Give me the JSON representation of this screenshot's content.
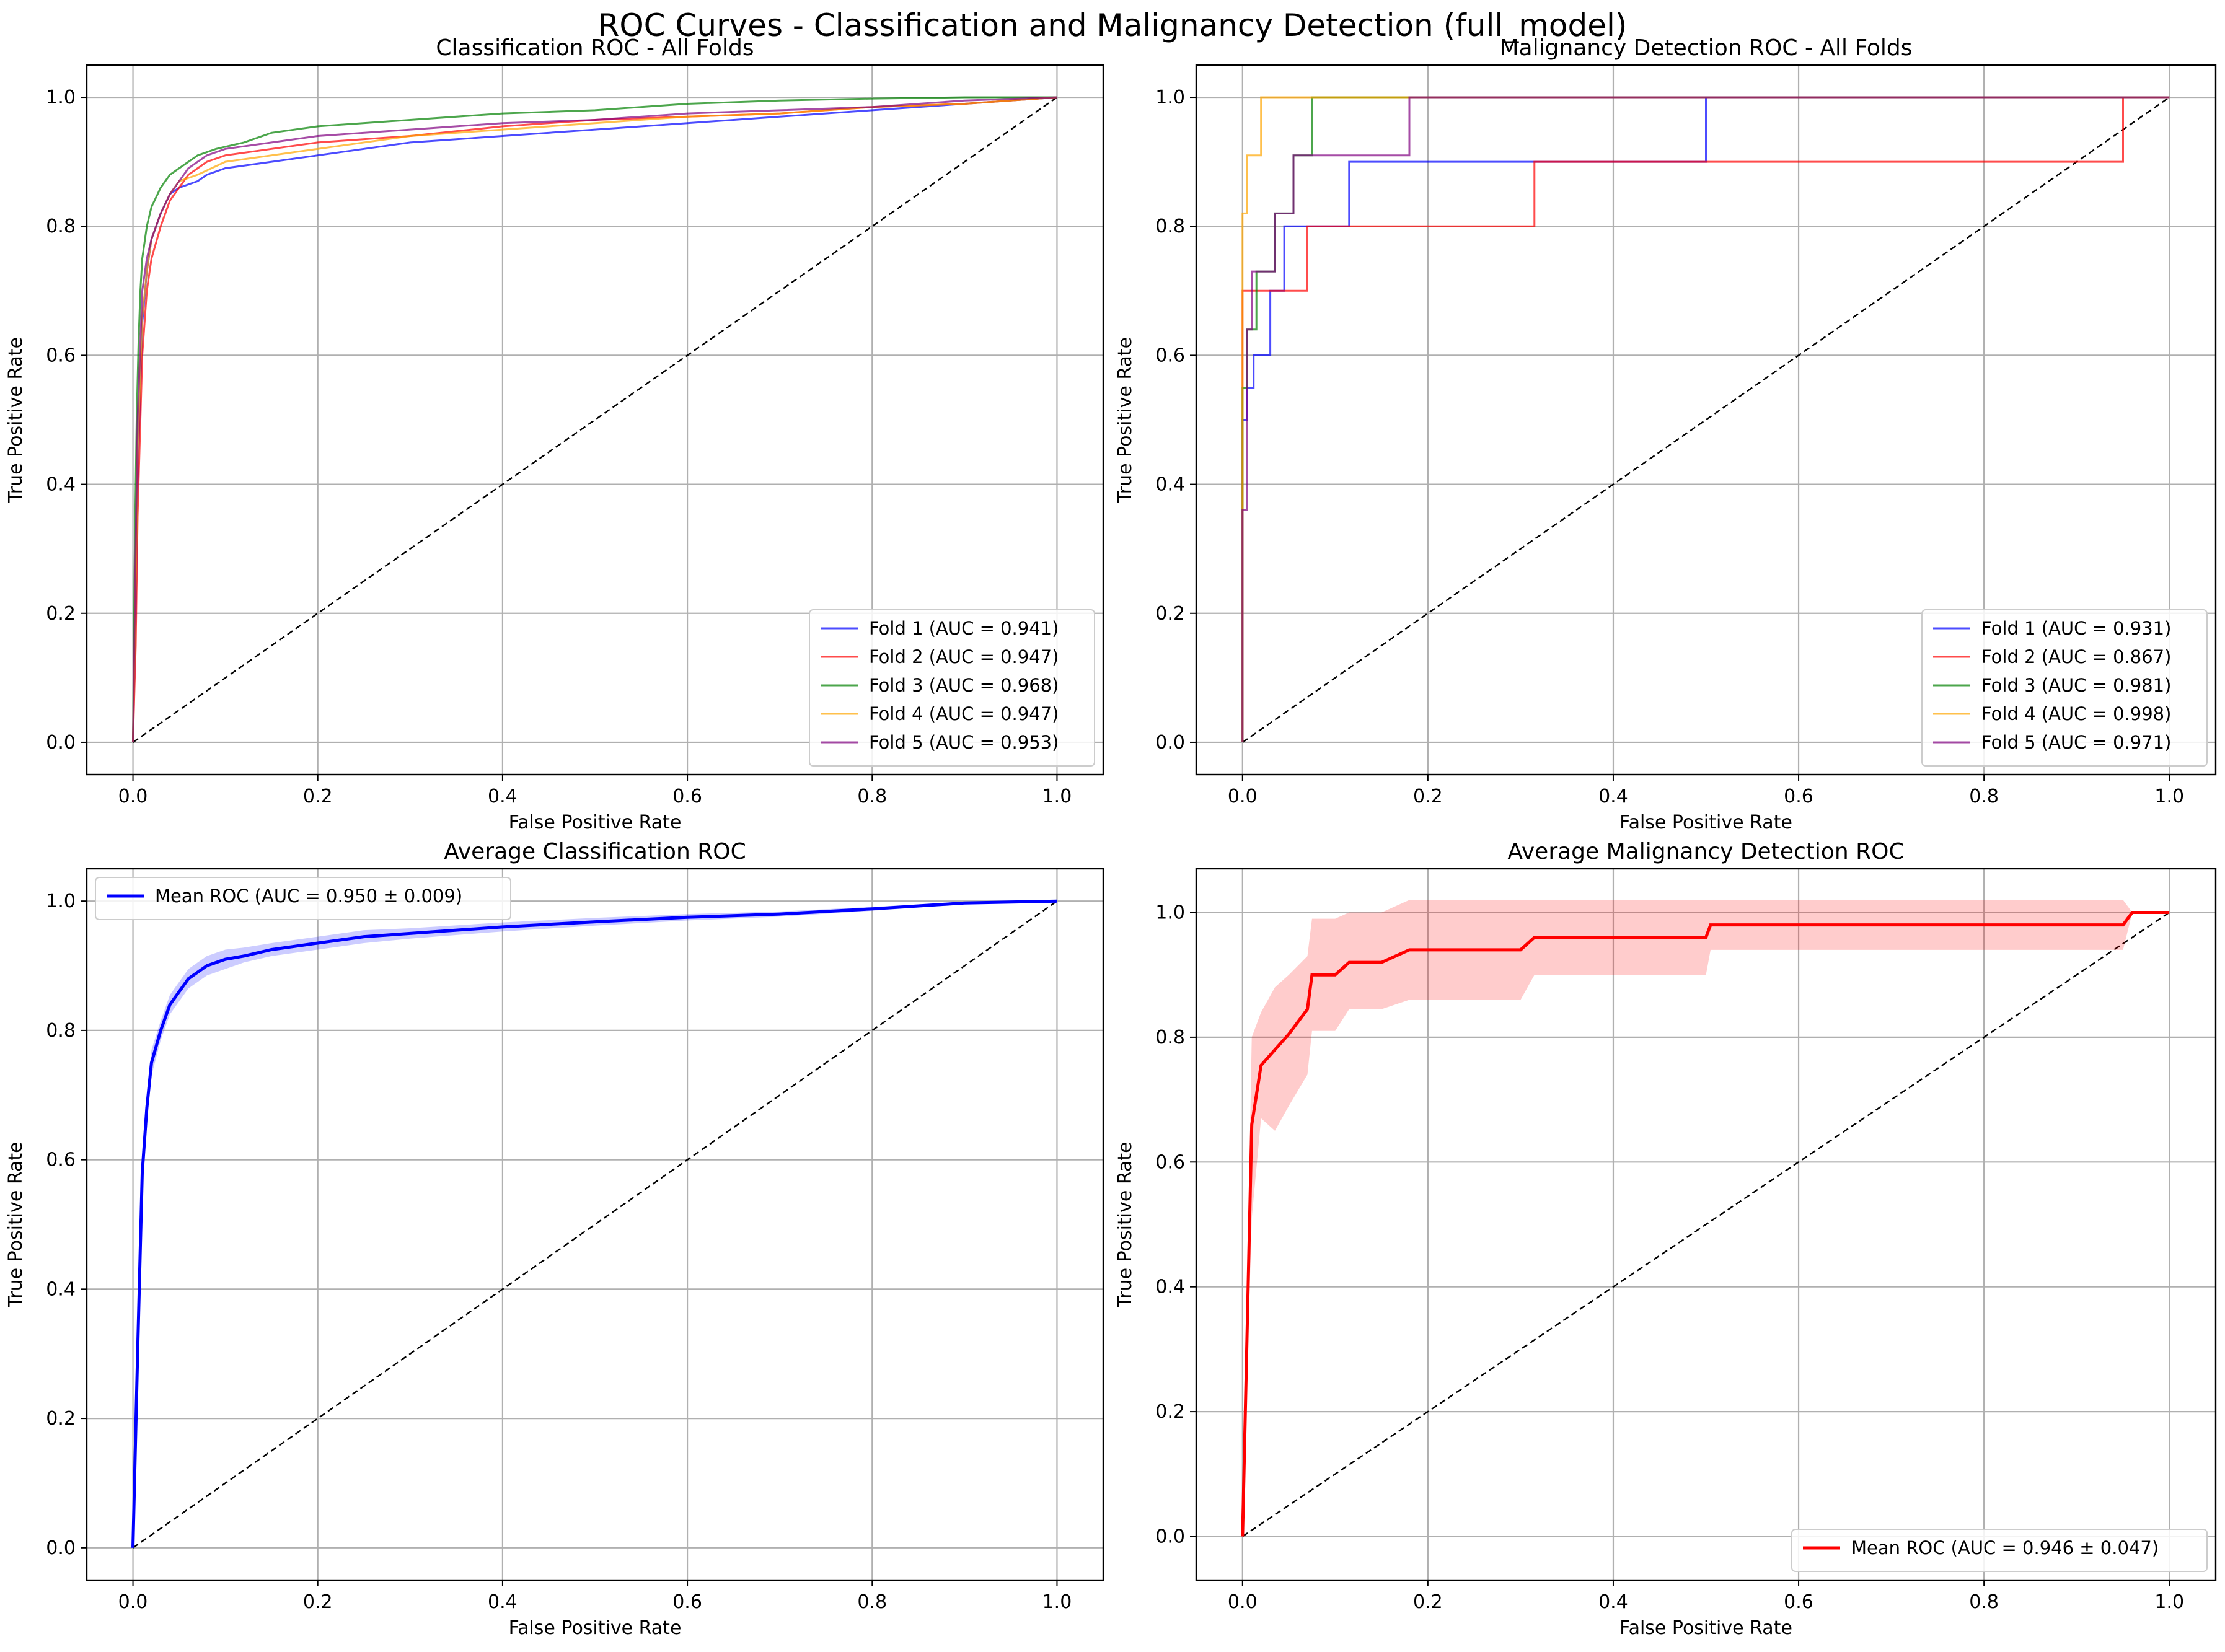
{
  "figure": {
    "title": "ROC Curves - Classification and Malignancy Detection (full_model)"
  },
  "chart_data": [
    {
      "type": "line",
      "title": "Classification ROC - All Folds",
      "xlabel": "False Positive Rate",
      "ylabel": "True Positive Rate",
      "xlim": [
        -0.05,
        1.05
      ],
      "ylim": [
        -0.05,
        1.05
      ],
      "xticks": [
        "0.0",
        "0.2",
        "0.4",
        "0.6",
        "0.8",
        "1.0"
      ],
      "yticks": [
        "0.0",
        "0.2",
        "0.4",
        "0.6",
        "0.8",
        "1.0"
      ],
      "grid": true,
      "legend_position": "lower-right",
      "diagonal": true,
      "series": [
        {
          "name": "Fold 1 (AUC = 0.941)",
          "color": "#0000ff",
          "step": false,
          "x": [
            0,
            0.003,
            0.005,
            0.008,
            0.01,
            0.015,
            0.02,
            0.03,
            0.04,
            0.05,
            0.07,
            0.08,
            0.1,
            0.15,
            0.2,
            0.25,
            0.3,
            0.35,
            0.4,
            0.5,
            0.6,
            0.7,
            0.8,
            0.9,
            1.0
          ],
          "y": [
            0,
            0.2,
            0.4,
            0.55,
            0.65,
            0.73,
            0.78,
            0.82,
            0.85,
            0.86,
            0.87,
            0.88,
            0.89,
            0.9,
            0.91,
            0.92,
            0.93,
            0.935,
            0.94,
            0.95,
            0.96,
            0.97,
            0.98,
            0.99,
            1.0
          ]
        },
        {
          "name": "Fold 2 (AUC = 0.947)",
          "color": "#ff0000",
          "step": false,
          "x": [
            0,
            0.003,
            0.005,
            0.008,
            0.01,
            0.015,
            0.02,
            0.03,
            0.04,
            0.05,
            0.06,
            0.08,
            0.1,
            0.15,
            0.2,
            0.3,
            0.4,
            0.5,
            0.6,
            0.7,
            0.8,
            0.9,
            1.0
          ],
          "y": [
            0,
            0.15,
            0.35,
            0.5,
            0.6,
            0.7,
            0.75,
            0.8,
            0.84,
            0.86,
            0.88,
            0.9,
            0.91,
            0.92,
            0.93,
            0.94,
            0.955,
            0.965,
            0.97,
            0.975,
            0.985,
            0.99,
            1.0
          ]
        },
        {
          "name": "Fold 3 (AUC = 0.968)",
          "color": "#008000",
          "step": false,
          "x": [
            0,
            0.002,
            0.004,
            0.006,
            0.008,
            0.01,
            0.015,
            0.02,
            0.03,
            0.04,
            0.05,
            0.06,
            0.07,
            0.09,
            0.12,
            0.15,
            0.2,
            0.3,
            0.4,
            0.5,
            0.6,
            0.7,
            0.8,
            0.9,
            1.0
          ],
          "y": [
            0,
            0.3,
            0.5,
            0.62,
            0.7,
            0.75,
            0.8,
            0.83,
            0.86,
            0.88,
            0.89,
            0.9,
            0.91,
            0.92,
            0.93,
            0.945,
            0.955,
            0.965,
            0.975,
            0.98,
            0.99,
            0.995,
            0.998,
            1.0,
            1.0
          ]
        },
        {
          "name": "Fold 4 (AUC = 0.947)",
          "color": "#ffa500",
          "step": false,
          "x": [
            0,
            0.003,
            0.005,
            0.008,
            0.01,
            0.015,
            0.02,
            0.03,
            0.04,
            0.05,
            0.07,
            0.1,
            0.15,
            0.2,
            0.3,
            0.4,
            0.5,
            0.6,
            0.7,
            0.8,
            0.9,
            1.0
          ],
          "y": [
            0,
            0.25,
            0.45,
            0.58,
            0.66,
            0.73,
            0.78,
            0.82,
            0.85,
            0.87,
            0.88,
            0.9,
            0.91,
            0.92,
            0.94,
            0.95,
            0.96,
            0.97,
            0.975,
            0.985,
            0.99,
            1.0
          ]
        },
        {
          "name": "Fold 5 (AUC = 0.953)",
          "color": "#800080",
          "step": false,
          "x": [
            0,
            0.003,
            0.005,
            0.008,
            0.01,
            0.015,
            0.02,
            0.03,
            0.04,
            0.05,
            0.06,
            0.07,
            0.08,
            0.1,
            0.15,
            0.2,
            0.3,
            0.4,
            0.5,
            0.6,
            0.7,
            0.8,
            0.9,
            1.0
          ],
          "y": [
            0,
            0.3,
            0.5,
            0.62,
            0.7,
            0.75,
            0.78,
            0.82,
            0.85,
            0.87,
            0.89,
            0.9,
            0.91,
            0.92,
            0.93,
            0.94,
            0.95,
            0.96,
            0.965,
            0.975,
            0.98,
            0.985,
            0.995,
            1.0
          ]
        }
      ]
    },
    {
      "type": "line",
      "title": "Malignancy Detection ROC - All Folds",
      "xlabel": "False Positive Rate",
      "ylabel": "True Positive Rate",
      "xlim": [
        -0.05,
        1.05
      ],
      "ylim": [
        -0.05,
        1.05
      ],
      "xticks": [
        "0.0",
        "0.2",
        "0.4",
        "0.6",
        "0.8",
        "1.0"
      ],
      "yticks": [
        "0.0",
        "0.2",
        "0.4",
        "0.6",
        "0.8",
        "1.0"
      ],
      "grid": true,
      "legend_position": "lower-right",
      "diagonal": true,
      "series": [
        {
          "name": "Fold 1 (AUC = 0.931)",
          "color": "#0000ff",
          "step": true,
          "x": [
            0,
            0,
            0.005,
            0.005,
            0.012,
            0.012,
            0.03,
            0.03,
            0.045,
            0.045,
            0.07,
            0.07,
            0.115,
            0.115,
            0.5,
            0.5,
            1.0
          ],
          "y": [
            0,
            0.5,
            0.5,
            0.55,
            0.55,
            0.6,
            0.6,
            0.7,
            0.7,
            0.8,
            0.8,
            0.8,
            0.8,
            0.9,
            0.9,
            1.0,
            1.0
          ]
        },
        {
          "name": "Fold 2 (AUC = 0.867)",
          "color": "#ff0000",
          "step": true,
          "x": [
            0,
            0,
            0.07,
            0.07,
            0.315,
            0.315,
            0.95,
            0.95,
            1.0
          ],
          "y": [
            0,
            0.7,
            0.7,
            0.8,
            0.8,
            0.9,
            0.9,
            1.0,
            1.0
          ]
        },
        {
          "name": "Fold 3 (AUC = 0.981)",
          "color": "#008000",
          "step": true,
          "x": [
            0,
            0,
            0.005,
            0.005,
            0.015,
            0.015,
            0.035,
            0.035,
            0.055,
            0.055,
            0.075,
            0.075,
            1.0
          ],
          "y": [
            0,
            0.55,
            0.55,
            0.64,
            0.64,
            0.73,
            0.73,
            0.82,
            0.82,
            0.91,
            0.91,
            1.0,
            1.0
          ]
        },
        {
          "name": "Fold 4 (AUC = 0.998)",
          "color": "#ffa500",
          "step": true,
          "x": [
            0,
            0,
            0.005,
            0.005,
            0.02,
            0.02,
            1.0
          ],
          "y": [
            0,
            0.82,
            0.82,
            0.91,
            0.91,
            1.0,
            1.0
          ]
        },
        {
          "name": "Fold 5 (AUC = 0.971)",
          "color": "#800080",
          "step": true,
          "x": [
            0,
            0,
            0.005,
            0.005,
            0.01,
            0.01,
            0.035,
            0.035,
            0.055,
            0.055,
            0.18,
            0.18,
            1.0
          ],
          "y": [
            0,
            0.36,
            0.36,
            0.64,
            0.64,
            0.73,
            0.73,
            0.82,
            0.82,
            0.91,
            0.91,
            1.0,
            1.0
          ]
        }
      ]
    },
    {
      "type": "area",
      "title": "Average Classification ROC",
      "xlabel": "False Positive Rate",
      "ylabel": "True Positive Rate",
      "xlim": [
        -0.05,
        1.05
      ],
      "ylim": [
        -0.05,
        1.05
      ],
      "xticks": [
        "0.0",
        "0.2",
        "0.4",
        "0.6",
        "0.8",
        "1.0"
      ],
      "yticks": [
        "0.0",
        "0.2",
        "0.4",
        "0.6",
        "0.8",
        "1.0"
      ],
      "grid": true,
      "legend_position": "upper-left",
      "diagonal": true,
      "series": [
        {
          "name": "Mean ROC (AUC = 0.950 ± 0.009)",
          "color": "#0000ff",
          "step": false,
          "x": [
            0,
            0.005,
            0.01,
            0.015,
            0.02,
            0.03,
            0.04,
            0.05,
            0.06,
            0.07,
            0.08,
            0.1,
            0.12,
            0.15,
            0.2,
            0.25,
            0.3,
            0.4,
            0.5,
            0.6,
            0.7,
            0.8,
            0.9,
            1.0
          ],
          "y": [
            0,
            0.3,
            0.58,
            0.68,
            0.75,
            0.8,
            0.84,
            0.86,
            0.88,
            0.89,
            0.9,
            0.91,
            0.915,
            0.925,
            0.935,
            0.945,
            0.95,
            0.96,
            0.968,
            0.975,
            0.98,
            0.988,
            0.997,
            1.0
          ],
          "band_lower": [
            0,
            0.28,
            0.56,
            0.66,
            0.73,
            0.785,
            0.825,
            0.845,
            0.865,
            0.875,
            0.885,
            0.895,
            0.905,
            0.915,
            0.925,
            0.935,
            0.942,
            0.953,
            0.962,
            0.97,
            0.976,
            0.985,
            0.995,
            1.0
          ],
          "band_upper": [
            0,
            0.32,
            0.6,
            0.7,
            0.77,
            0.815,
            0.855,
            0.875,
            0.895,
            0.905,
            0.915,
            0.925,
            0.928,
            0.935,
            0.945,
            0.955,
            0.958,
            0.967,
            0.974,
            0.98,
            0.984,
            0.991,
            0.999,
            1.0
          ]
        }
      ]
    },
    {
      "type": "area",
      "title": "Average Malignancy Detection ROC",
      "xlabel": "False Positive Rate",
      "ylabel": "True Positive Rate",
      "xlim": [
        -0.05,
        1.05
      ],
      "ylim": [
        -0.07,
        1.07
      ],
      "xticks": [
        "0.0",
        "0.2",
        "0.4",
        "0.6",
        "0.8",
        "1.0"
      ],
      "yticks": [
        "0.0",
        "0.2",
        "0.4",
        "0.6",
        "0.8",
        "1.0"
      ],
      "grid": true,
      "legend_position": "lower-right",
      "diagonal": true,
      "series": [
        {
          "name": "Mean ROC (AUC = 0.946 ± 0.047)",
          "color": "#ff0000",
          "step": false,
          "x": [
            0,
            0.01,
            0.02,
            0.035,
            0.05,
            0.07,
            0.075,
            0.1,
            0.115,
            0.15,
            0.18,
            0.2,
            0.3,
            0.315,
            0.4,
            0.5,
            0.505,
            0.6,
            0.8,
            0.95,
            0.96,
            1.0
          ],
          "y": [
            0,
            0.66,
            0.755,
            0.78,
            0.805,
            0.845,
            0.9,
            0.9,
            0.92,
            0.92,
            0.94,
            0.94,
            0.94,
            0.96,
            0.96,
            0.96,
            0.98,
            0.98,
            0.98,
            0.98,
            1.0,
            1.0
          ],
          "band_lower": [
            0,
            0.51,
            0.67,
            0.65,
            0.69,
            0.74,
            0.81,
            0.81,
            0.845,
            0.845,
            0.86,
            0.86,
            0.86,
            0.9,
            0.9,
            0.9,
            0.94,
            0.94,
            0.94,
            0.94,
            1.0,
            1.0
          ],
          "band_upper": [
            0,
            0.8,
            0.84,
            0.88,
            0.9,
            0.93,
            0.99,
            0.99,
            1.0,
            1.0,
            1.02,
            1.02,
            1.02,
            1.02,
            1.02,
            1.02,
            1.02,
            1.02,
            1.02,
            1.02,
            1.0,
            1.0
          ]
        }
      ]
    }
  ]
}
